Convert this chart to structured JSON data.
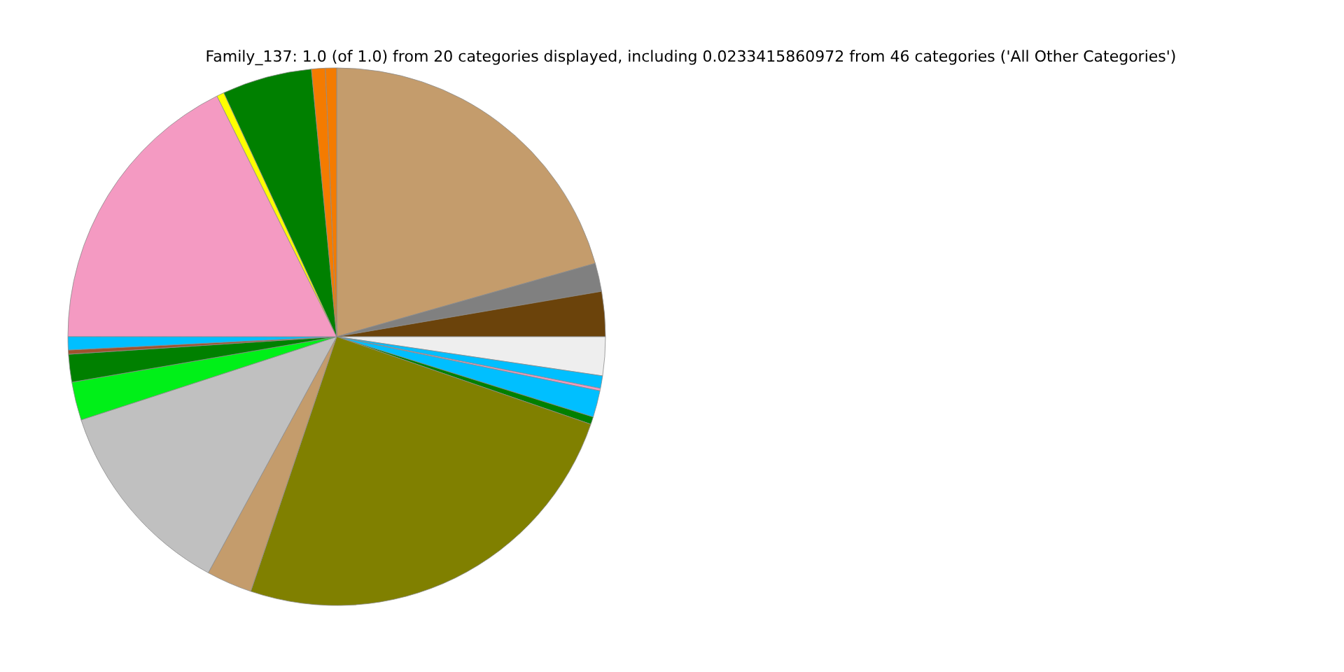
{
  "chart_data": {
    "type": "pie",
    "title": "Family_137: 1.0 (of 1.0) from 20 categories displayed, including 0.0233415860972 from 46 categories ('All Other Categories')",
    "categories": [
      null,
      null,
      null,
      null,
      null,
      null,
      null,
      null,
      null,
      null,
      null,
      null,
      null,
      null,
      null,
      null,
      null,
      null,
      null,
      null
    ],
    "values": [
      20.6,
      1.7,
      2.7,
      2.33,
      0.75,
      0.15,
      1.6,
      0.45,
      24.9,
      2.75,
      12.06,
      2.3,
      1.67,
      0.25,
      0.8,
      17.64,
      0.45,
      5.4,
      0.83,
      0.67
    ],
    "colors": [
      "#c49c6c",
      "#808080",
      "#6b430b",
      "#eeeeee",
      "#00bfff",
      "#f49ac2",
      "#00bfff",
      "#008000",
      "#808000",
      "#c49c6c",
      "#c0c0c0",
      "#00f018",
      "#008000",
      "#a0522d",
      "#00bfff",
      "#f49ac2",
      "#ffff00",
      "#008000",
      "#f47b00",
      "#f47b00"
    ]
  }
}
